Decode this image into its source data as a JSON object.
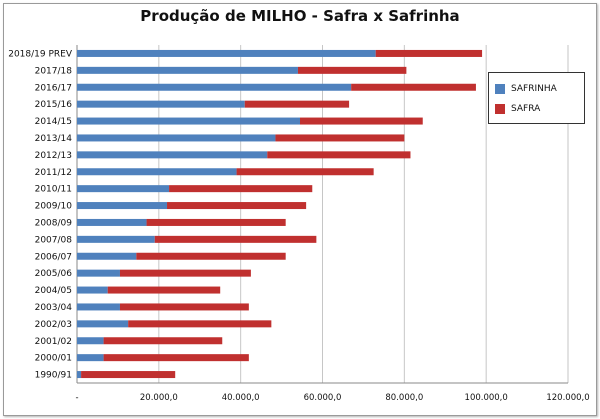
{
  "chart_data": {
    "type": "bar",
    "orientation": "horizontal",
    "stacked": true,
    "title": "Produção de MILHO - Safra x Safrinha",
    "categories": [
      "2018/19 PREV",
      "2017/18",
      "2016/17",
      "2015/16",
      "2014/15",
      "2013/14",
      "2012/13",
      "2011/12",
      "2010/11",
      "2009/10",
      "2008/09",
      "2007/08",
      "2006/07",
      "2005/06",
      "2004/05",
      "2003/04",
      "2002/03",
      "2001/02",
      "2000/01",
      "1990/91"
    ],
    "series": [
      {
        "name": "SAFRINHA",
        "color": "#4f81bd",
        "values": [
          73000,
          54000,
          67000,
          41000,
          54500,
          48500,
          46500,
          39000,
          22500,
          22000,
          17000,
          19000,
          14500,
          10500,
          7500,
          10500,
          12500,
          6500,
          6500,
          1000
        ]
      },
      {
        "name": "SAFRA",
        "color": "#c0302f",
        "values": [
          26000,
          26500,
          30500,
          25500,
          30000,
          31500,
          35000,
          33500,
          35000,
          34000,
          34000,
          39500,
          36500,
          32000,
          27500,
          31500,
          35000,
          29000,
          35500,
          23000
        ]
      }
    ],
    "xlim": [
      0,
      120000
    ],
    "xticks": [
      "-",
      "20.000,0",
      "40.000,0",
      "60.000,0",
      "80.000,0",
      "100.000,0",
      "120.000,0"
    ],
    "grid": true,
    "legend_position": "right"
  }
}
